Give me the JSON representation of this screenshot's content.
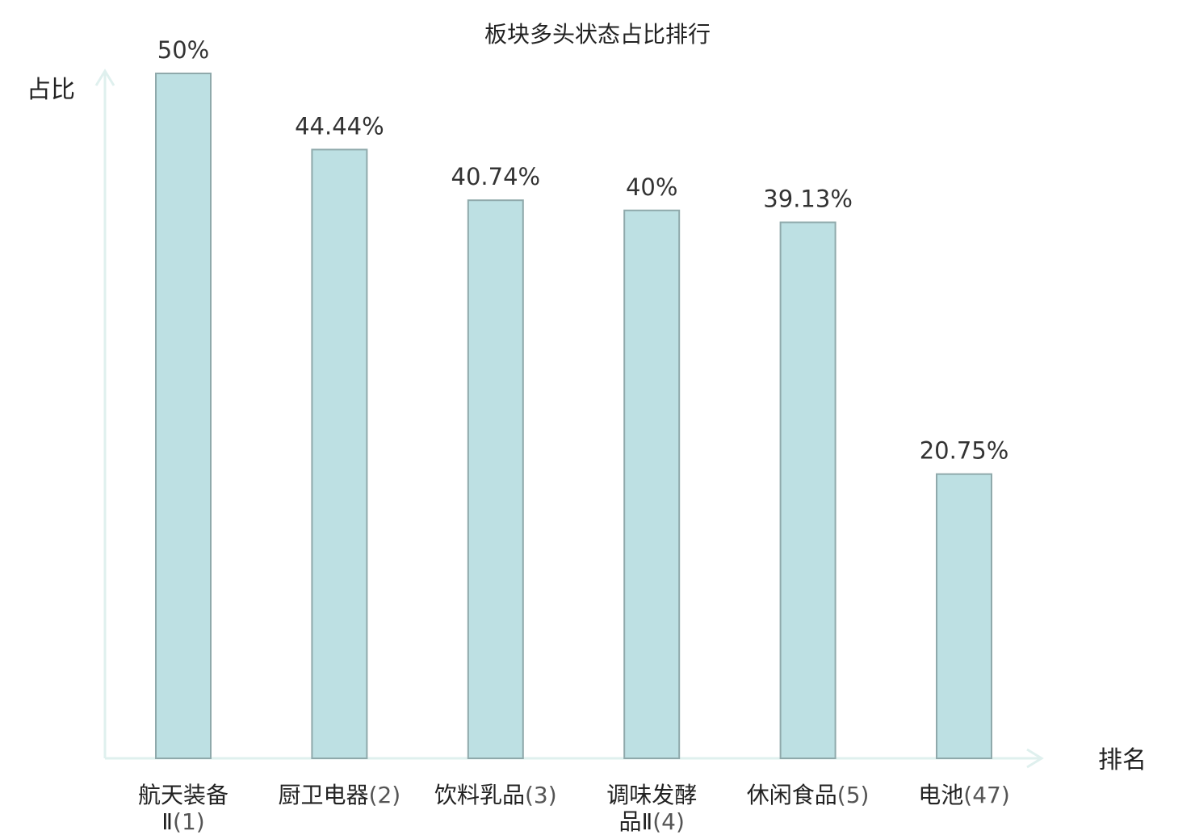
{
  "chart_data": {
    "type": "bar",
    "title": "板块多头状态占比排行",
    "ylabel": "占比",
    "xlabel": "排名",
    "ylim": [
      0,
      50
    ],
    "grid": false,
    "legend": "none",
    "value_suffix": "%",
    "categories": [
      {
        "name": "航天装备Ⅱ",
        "rank": "(1)",
        "value": 50,
        "label": "50%",
        "highlight": false
      },
      {
        "name": "厨卫电器",
        "rank": "(2)",
        "value": 44.44,
        "label": "44.44%",
        "highlight": false
      },
      {
        "name": "饮料乳品",
        "rank": "(3)",
        "value": 40.74,
        "label": "40.74%",
        "highlight": false
      },
      {
        "name": "调味发酵品Ⅱ",
        "rank": "(4)",
        "value": 40,
        "label": "40%",
        "highlight": false
      },
      {
        "name": "休闲食品",
        "rank": "(5)",
        "value": 39.13,
        "label": "39.13%",
        "highlight": false
      },
      {
        "name": "电池",
        "rank": "(47)",
        "value": 20.75,
        "label": "20.75%",
        "highlight": true
      }
    ],
    "colors": {
      "bar_fill": "#bde0e3",
      "bar_stroke": "#8fa9ab",
      "axis": "#dff0ee",
      "highlight_text": "#e02020",
      "text": "#222222",
      "value_text": "#333333",
      "rank_text": "#555555"
    }
  }
}
